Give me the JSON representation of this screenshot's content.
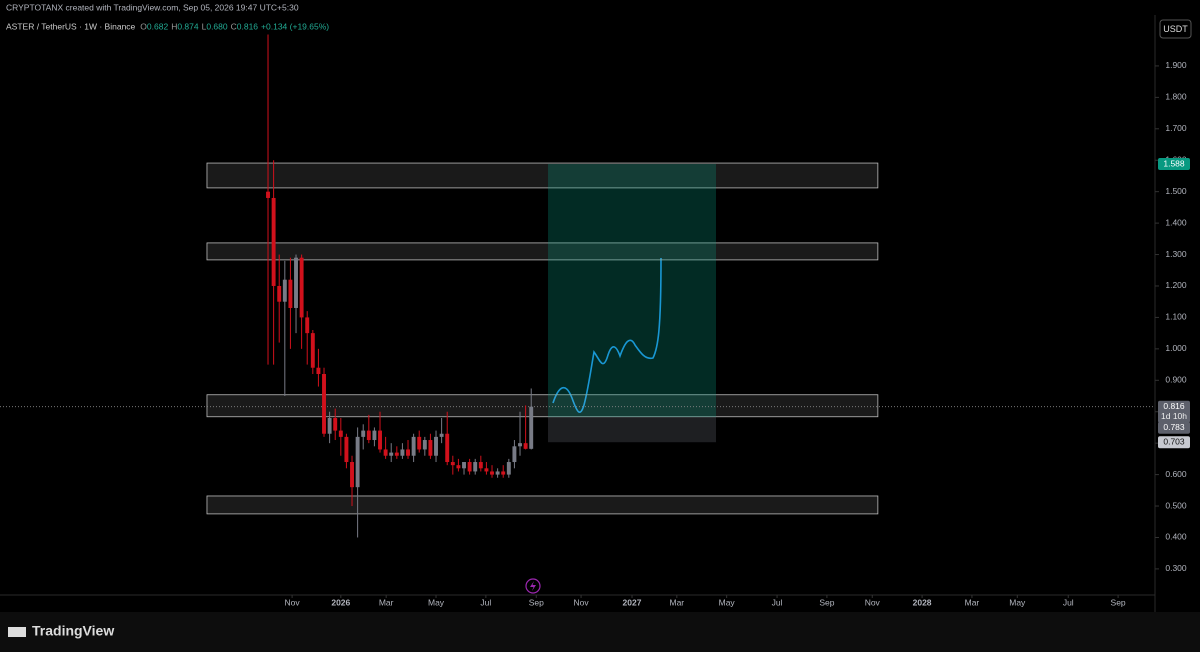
{
  "header": {
    "credit": "CRYPTOTANX created with TradingView.com, Sep 05, 2026 19:47 UTC+5:30"
  },
  "chart_data": {
    "type": "candlestick",
    "symbol": "ASTER / TetherUS · 1W · Binance",
    "legend": [
      {
        "label": "O",
        "value": "0.682"
      },
      {
        "label": "H",
        "value": "0.874"
      },
      {
        "label": "L",
        "value": "0.680"
      },
      {
        "label": "C",
        "value": "0.816"
      }
    ],
    "change": "+0.134 (+19.65%)",
    "currency": "USDT",
    "countdown": "1d 10h",
    "brand": "TradingView",
    "up_color": "#787b86",
    "down_color": "#d1111c",
    "open": [
      1.5,
      1.48,
      1.2,
      1.15,
      1.22,
      1.13,
      1.29,
      1.1,
      1.05,
      0.94,
      0.92,
      0.73,
      0.78,
      0.74,
      0.72,
      0.64,
      0.56,
      0.72,
      0.74,
      0.71,
      0.74,
      0.68,
      0.66,
      0.67,
      0.66,
      0.68,
      0.66,
      0.72,
      0.68,
      0.71,
      0.66,
      0.72,
      0.73,
      0.64,
      0.63,
      0.62,
      0.64,
      0.61,
      0.64,
      0.62,
      0.61,
      0.6,
      0.61,
      0.6,
      0.64,
      0.69,
      0.7,
      0.682
    ],
    "high": [
      2.0,
      1.6,
      1.3,
      1.28,
      1.29,
      1.3,
      1.3,
      1.12,
      1.06,
      1.0,
      0.94,
      0.8,
      0.81,
      0.78,
      0.73,
      0.66,
      0.75,
      0.76,
      0.79,
      0.75,
      0.8,
      0.72,
      0.7,
      0.69,
      0.7,
      0.71,
      0.73,
      0.74,
      0.72,
      0.73,
      0.74,
      0.78,
      0.8,
      0.66,
      0.65,
      0.64,
      0.65,
      0.65,
      0.66,
      0.64,
      0.63,
      0.62,
      0.63,
      0.65,
      0.71,
      0.8,
      0.82,
      0.874
    ],
    "low": [
      0.95,
      0.95,
      1.02,
      0.85,
      1.0,
      1.05,
      1.0,
      0.95,
      0.92,
      0.88,
      0.72,
      0.7,
      0.71,
      0.66,
      0.62,
      0.5,
      0.4,
      0.68,
      0.7,
      0.69,
      0.67,
      0.65,
      0.64,
      0.65,
      0.65,
      0.65,
      0.64,
      0.67,
      0.66,
      0.65,
      0.64,
      0.7,
      0.63,
      0.6,
      0.61,
      0.6,
      0.6,
      0.6,
      0.61,
      0.6,
      0.59,
      0.59,
      0.59,
      0.59,
      0.62,
      0.66,
      0.68,
      0.68
    ],
    "close": [
      1.48,
      1.2,
      1.15,
      1.22,
      1.13,
      1.29,
      1.1,
      1.05,
      0.94,
      0.92,
      0.73,
      0.78,
      0.74,
      0.72,
      0.64,
      0.56,
      0.72,
      0.74,
      0.71,
      0.74,
      0.68,
      0.66,
      0.67,
      0.66,
      0.68,
      0.66,
      0.72,
      0.68,
      0.71,
      0.66,
      0.72,
      0.73,
      0.64,
      0.63,
      0.62,
      0.64,
      0.61,
      0.64,
      0.62,
      0.61,
      0.6,
      0.61,
      0.6,
      0.64,
      0.69,
      0.7,
      0.682,
      0.816
    ],
    "xlim": [
      -47.86,
      158.39
    ],
    "xticks": [
      {
        "value": 4.3,
        "label": "Nov"
      },
      {
        "value": 13.0,
        "label": "2026"
      },
      {
        "value": 21.1,
        "label": "Mar"
      },
      {
        "value": 30.0,
        "label": "May"
      },
      {
        "value": 38.9,
        "label": "Jul"
      },
      {
        "value": 47.9,
        "label": "Sep"
      },
      {
        "value": 55.9,
        "label": "Nov"
      },
      {
        "value": 65.0,
        "label": "2027"
      },
      {
        "value": 73.0,
        "label": "Mar"
      },
      {
        "value": 81.9,
        "label": "May"
      },
      {
        "value": 90.9,
        "label": "Jul"
      },
      {
        "value": 99.8,
        "label": "Sep"
      },
      {
        "value": 107.9,
        "label": "Nov"
      },
      {
        "value": 116.8,
        "label": "2028"
      },
      {
        "value": 125.7,
        "label": "Mar"
      },
      {
        "value": 133.8,
        "label": "May"
      },
      {
        "value": 142.9,
        "label": "Jul"
      },
      {
        "value": 151.8,
        "label": "Sep"
      }
    ],
    "ylim": [
      0.217,
      2.062
    ],
    "yticks": [
      {
        "value": 0.3,
        "label": "0.300"
      },
      {
        "value": 0.4,
        "label": "0.400"
      },
      {
        "value": 0.5,
        "label": "0.500"
      },
      {
        "value": 0.6,
        "label": "0.600"
      },
      {
        "value": 0.7,
        "label": "0.700"
      },
      {
        "value": 0.8,
        "label": "0.800"
      },
      {
        "value": 0.9,
        "label": "0.900"
      },
      {
        "value": 1.0,
        "label": "1.000"
      },
      {
        "value": 1.1,
        "label": "1.100"
      },
      {
        "value": 1.2,
        "label": "1.200"
      },
      {
        "value": 1.3,
        "label": "1.300"
      },
      {
        "value": 1.4,
        "label": "1.400"
      },
      {
        "value": 1.5,
        "label": "1.500"
      },
      {
        "value": 1.6,
        "label": "1.600"
      },
      {
        "value": 1.7,
        "label": "1.700"
      },
      {
        "value": 1.8,
        "label": "1.800"
      },
      {
        "value": 1.9,
        "label": "1.900"
      }
    ],
    "zones": [
      {
        "low": 1.512,
        "high": 1.591
      },
      {
        "low": 1.283,
        "high": 1.337
      },
      {
        "low": 0.784,
        "high": 0.854
      },
      {
        "low": 0.475,
        "high": 0.532
      }
    ],
    "zone_x": [
      -10.9,
      108.9
    ],
    "current_price": {
      "value": 0.816,
      "label": "0.816"
    },
    "position": {
      "x": [
        50.0,
        80.0
      ],
      "target": {
        "value": 1.588,
        "label": "1.588"
      },
      "entry": {
        "value": 0.783,
        "label": "0.783"
      },
      "stop": {
        "value": 0.703,
        "label": "0.703"
      }
    }
  }
}
